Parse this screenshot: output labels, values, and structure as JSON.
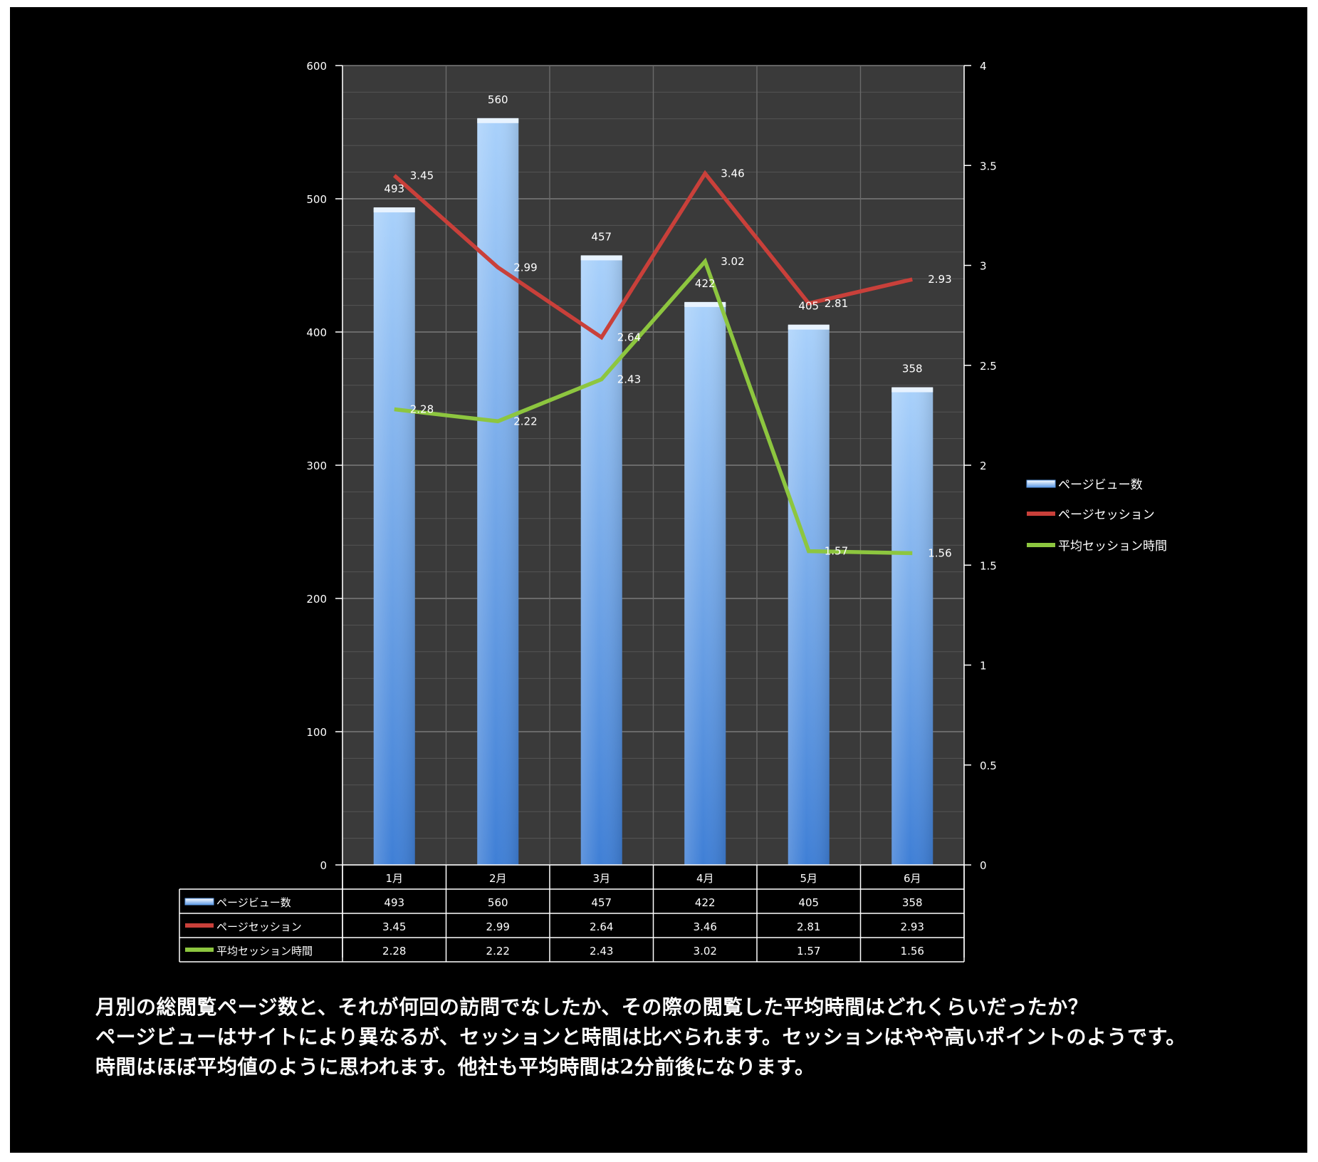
{
  "chart_data": {
    "type": "bar",
    "categories": [
      "1月",
      "2月",
      "3月",
      "4月",
      "5月",
      "6月"
    ],
    "series": [
      {
        "name": "ページビュー数",
        "type": "bar",
        "axis": "left",
        "values": [
          493,
          560,
          457,
          422,
          405,
          358
        ],
        "color": "#8fbdf3"
      },
      {
        "name": "ページセッション",
        "type": "line",
        "axis": "right",
        "values": [
          3.45,
          2.99,
          2.64,
          3.46,
          2.81,
          2.93
        ],
        "color": "#c9403a"
      },
      {
        "name": "平均セッション時間",
        "type": "line",
        "axis": "right",
        "values": [
          2.28,
          2.22,
          2.43,
          3.02,
          1.57,
          1.56
        ],
        "color": "#8dc63f"
      }
    ],
    "y_left": {
      "min": 0,
      "max": 600,
      "ticks": [
        0,
        100,
        200,
        300,
        400,
        500,
        600
      ]
    },
    "y_right": {
      "min": 0,
      "max": 4,
      "ticks": [
        "0",
        "0.5",
        "1",
        "1.5",
        "2",
        "2.5",
        "3",
        "3.5",
        "4"
      ]
    },
    "grid": true,
    "legend_position": "right",
    "data_table": true
  },
  "caption": [
    "月別の総閲覧ページ数と、それが何回の訪問でなしたか、その際の閲覧した平均時間はどれくらいだったか？",
    "ページビューはサイトにより異なるが、セッションと時間は比べられます。セッションはやや高いポイントのようです。",
    "時間はほぼ平均値のように思われます。他社も平均時間は2分前後になります。"
  ]
}
